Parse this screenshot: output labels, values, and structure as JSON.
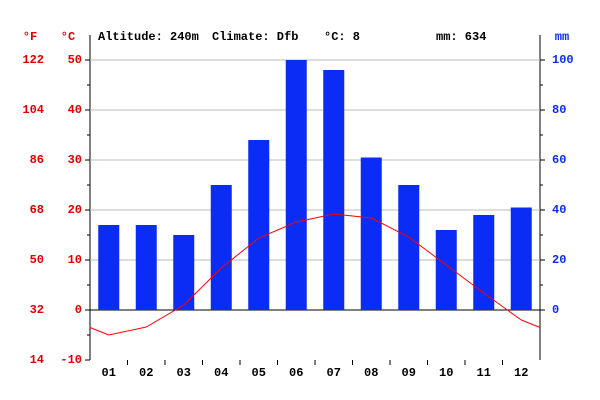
{
  "chart_data": {
    "type": "climate",
    "header": [
      "Altitude: 240m",
      "Climate: Dfb",
      "°C: 8",
      "mm: 634"
    ],
    "y_label": "°C",
    "y2_label": "mm",
    "y3_label": "°F",
    "categories": [
      "01",
      "02",
      "03",
      "04",
      "05",
      "06",
      "07",
      "08",
      "09",
      "10",
      "11",
      "12"
    ],
    "series": [
      {
        "name": "mm",
        "kind": "bar",
        "axis": "y2",
        "color": "#0a2cf5",
        "values": [
          34,
          34,
          30,
          50,
          68,
          100,
          96,
          61,
          50,
          32,
          38,
          41
        ]
      },
      {
        "name": "°C",
        "kind": "line",
        "color": "#ff0000",
        "values": [
          -5,
          -3.4,
          1,
          8.4,
          14.4,
          17.6,
          19.2,
          18.4,
          14.6,
          9,
          3.4,
          -2
        ]
      }
    ],
    "ylim": [
      -10,
      55
    ],
    "yticks": [
      -10,
      0,
      10,
      20,
      30,
      40,
      50
    ],
    "y2lim": [
      -20,
      110
    ],
    "y2ticks": [
      0,
      20,
      40,
      60,
      80,
      100
    ],
    "y3lim": [
      14,
      131
    ],
    "y3ticks": [
      14,
      32,
      50,
      68,
      86,
      104,
      122
    ],
    "grid": true
  }
}
